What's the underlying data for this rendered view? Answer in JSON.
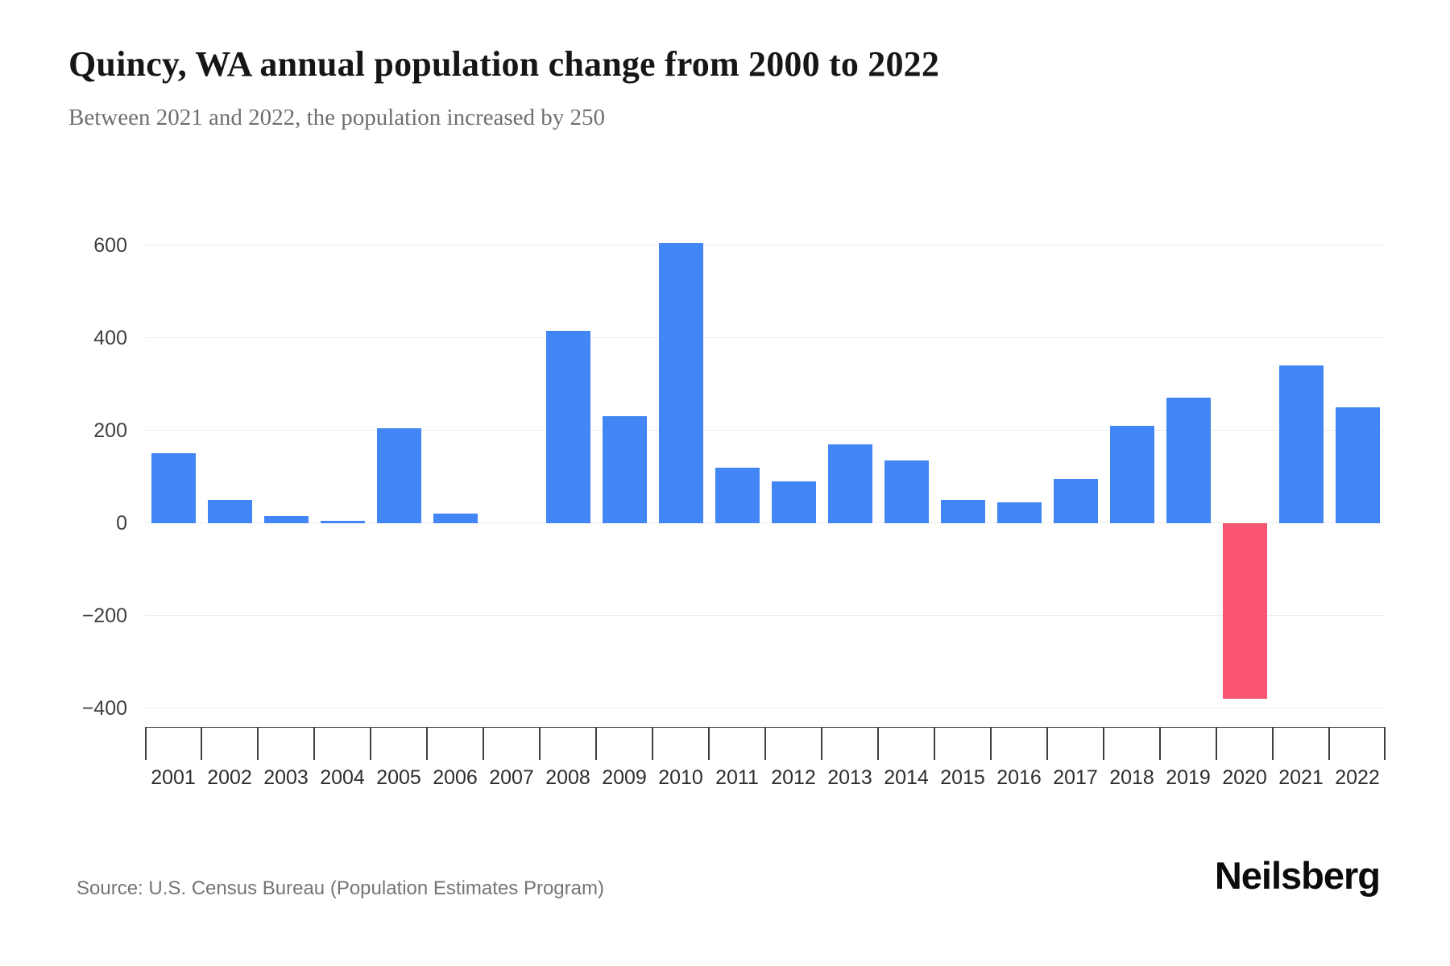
{
  "header": {
    "title": "Quincy, WA annual population change from 2000 to 2022",
    "subtitle": "Between 2021 and 2022, the population increased by 250"
  },
  "chart_data": {
    "type": "bar",
    "title": "Quincy, WA annual population change from 2000 to 2022",
    "subtitle": "Between 2021 and 2022, the population increased by 250",
    "categories": [
      "2001",
      "2002",
      "2003",
      "2004",
      "2005",
      "2006",
      "2007",
      "2008",
      "2009",
      "2010",
      "2011",
      "2012",
      "2013",
      "2014",
      "2015",
      "2016",
      "2017",
      "2018",
      "2019",
      "2020",
      "2021",
      "2022"
    ],
    "values": [
      150,
      50,
      15,
      5,
      205,
      20,
      0,
      415,
      230,
      605,
      120,
      90,
      170,
      135,
      50,
      45,
      95,
      210,
      270,
      -380,
      340,
      250
    ],
    "ylim": [
      -400,
      600
    ],
    "yticks": [
      {
        "value": 600,
        "label": "600"
      },
      {
        "value": 400,
        "label": "400"
      },
      {
        "value": 200,
        "label": "200"
      },
      {
        "value": 0,
        "label": "0"
      },
      {
        "value": -200,
        "label": "−200"
      },
      {
        "value": -400,
        "label": "−400"
      }
    ],
    "grid": "horizontal",
    "legend": "none",
    "colors": {
      "positive_bar": "#4285f4",
      "negative_bar": "#fa5570",
      "gridline": "#ececec",
      "axis_line": "#3c3c3c"
    }
  },
  "footer": {
    "source": "Source: U.S. Census Bureau (Population Estimates Program)",
    "brand": "Neilsberg"
  }
}
